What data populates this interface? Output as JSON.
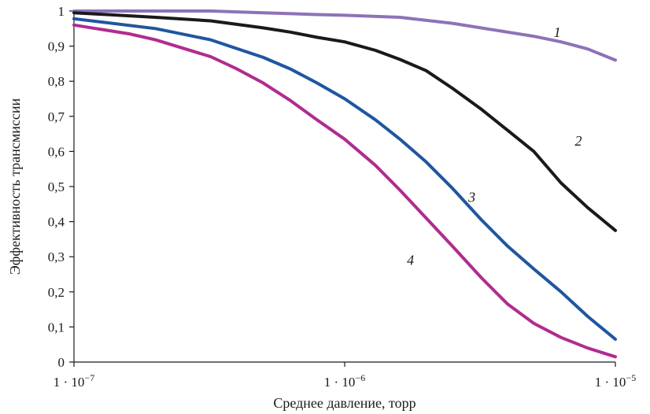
{
  "chart_data": {
    "type": "line",
    "xlabel": "Среднее давление, торр",
    "ylabel": "Эффективность трансмиссии",
    "x_scale": "log",
    "xlim": [
      1e-07,
      1e-05
    ],
    "ylim": [
      0,
      1
    ],
    "grid": false,
    "y_ticks": [
      {
        "value": 0,
        "label": "0"
      },
      {
        "value": 0.1,
        "label": "0,1"
      },
      {
        "value": 0.2,
        "label": "0,2"
      },
      {
        "value": 0.3,
        "label": "0,3"
      },
      {
        "value": 0.4,
        "label": "0,4"
      },
      {
        "value": 0.5,
        "label": "0,5"
      },
      {
        "value": 0.6,
        "label": "0,6"
      },
      {
        "value": 0.7,
        "label": "0,7"
      },
      {
        "value": 0.8,
        "label": "0,8"
      },
      {
        "value": 0.9,
        "label": "0,9"
      },
      {
        "value": 1,
        "label": "1"
      }
    ],
    "x_ticks": [
      {
        "value": 1e-07,
        "label_base": "1 · 10",
        "label_exp": "−7"
      },
      {
        "value": 1e-06,
        "label_base": "1 · 10",
        "label_exp": "−6"
      },
      {
        "value": 1e-05,
        "label_base": "1 · 10",
        "label_exp": "−5"
      }
    ],
    "series": [
      {
        "label": "1",
        "color": "#8e72b8",
        "label_at": [
          6.1e-06,
          0.94
        ],
        "points": [
          [
            1e-07,
            1.0
          ],
          [
            2e-07,
            1.0
          ],
          [
            3.2e-07,
            1.0
          ],
          [
            5e-07,
            0.995
          ],
          [
            7.9e-07,
            0.99
          ],
          [
            1e-06,
            0.988
          ],
          [
            1.6e-06,
            0.982
          ],
          [
            2.5e-06,
            0.965
          ],
          [
            4e-06,
            0.94
          ],
          [
            5e-06,
            0.928
          ],
          [
            6.3e-06,
            0.912
          ],
          [
            7.9e-06,
            0.892
          ],
          [
            1e-05,
            0.86
          ]
        ]
      },
      {
        "label": "2",
        "color": "#1a1a1a",
        "label_at": [
          7.3e-06,
          0.63
        ],
        "points": [
          [
            1e-07,
            0.995
          ],
          [
            2e-07,
            0.982
          ],
          [
            3.2e-07,
            0.972
          ],
          [
            5e-07,
            0.952
          ],
          [
            6.3e-07,
            0.94
          ],
          [
            7.9e-07,
            0.925
          ],
          [
            1e-06,
            0.912
          ],
          [
            1.3e-06,
            0.888
          ],
          [
            1.6e-06,
            0.862
          ],
          [
            2e-06,
            0.83
          ],
          [
            2.5e-06,
            0.78
          ],
          [
            3.2e-06,
            0.72
          ],
          [
            4e-06,
            0.66
          ],
          [
            5e-06,
            0.6
          ],
          [
            6.3e-06,
            0.51
          ],
          [
            7.9e-06,
            0.44
          ],
          [
            1e-05,
            0.375
          ]
        ]
      },
      {
        "label": "3",
        "color": "#1f56a0",
        "label_at": [
          2.95e-06,
          0.47
        ],
        "points": [
          [
            1e-07,
            0.978
          ],
          [
            2e-07,
            0.95
          ],
          [
            3.2e-07,
            0.918
          ],
          [
            5e-07,
            0.868
          ],
          [
            6.3e-07,
            0.835
          ],
          [
            7.9e-07,
            0.795
          ],
          [
            1e-06,
            0.75
          ],
          [
            1.3e-06,
            0.69
          ],
          [
            1.6e-06,
            0.635
          ],
          [
            2e-06,
            0.57
          ],
          [
            2.5e-06,
            0.495
          ],
          [
            3.2e-06,
            0.405
          ],
          [
            4e-06,
            0.33
          ],
          [
            5e-06,
            0.265
          ],
          [
            6.3e-06,
            0.2
          ],
          [
            7.9e-06,
            0.13
          ],
          [
            1e-05,
            0.065
          ]
        ]
      },
      {
        "label": "4",
        "color": "#b02c8e",
        "label_at": [
          1.75e-06,
          0.29
        ],
        "points": [
          [
            1e-07,
            0.96
          ],
          [
            1.6e-07,
            0.935
          ],
          [
            2e-07,
            0.918
          ],
          [
            3.2e-07,
            0.87
          ],
          [
            4e-07,
            0.835
          ],
          [
            5e-07,
            0.795
          ],
          [
            6.3e-07,
            0.745
          ],
          [
            7.9e-07,
            0.69
          ],
          [
            1e-06,
            0.635
          ],
          [
            1.3e-06,
            0.56
          ],
          [
            1.6e-06,
            0.49
          ],
          [
            2e-06,
            0.41
          ],
          [
            2.5e-06,
            0.33
          ],
          [
            3.2e-06,
            0.24
          ],
          [
            4e-06,
            0.165
          ],
          [
            5e-06,
            0.11
          ],
          [
            6.3e-06,
            0.07
          ],
          [
            7.9e-06,
            0.04
          ],
          [
            1e-05,
            0.015
          ]
        ]
      }
    ]
  }
}
